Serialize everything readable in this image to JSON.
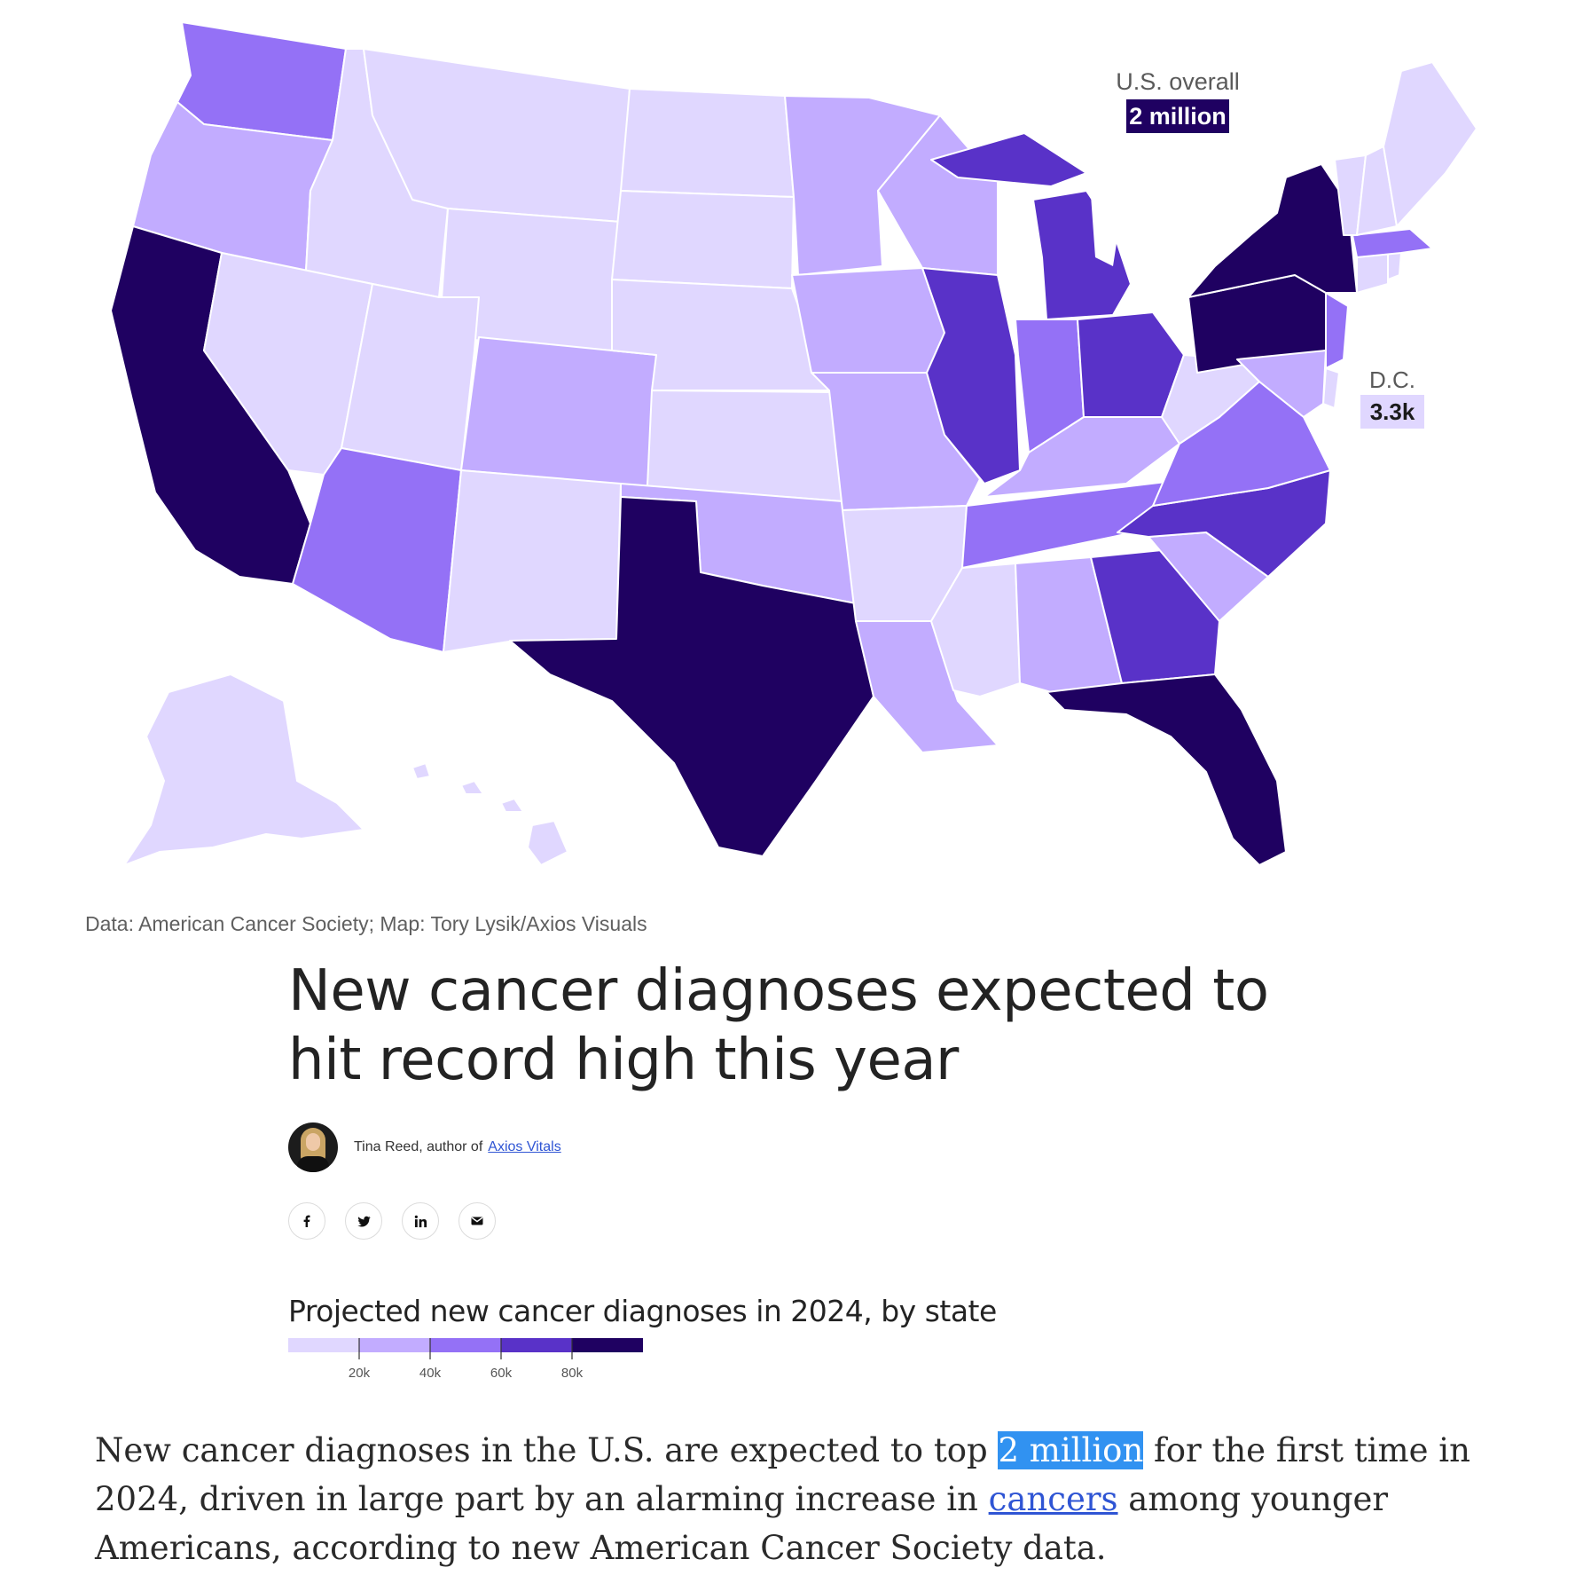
{
  "map": {
    "national_label": "U.S. overall",
    "national_value": "2 million",
    "dc_label": "D.C.",
    "dc_value": "3.3k"
  },
  "credit": "Data: American Cancer Society; Map: Tory Lysik/Axios Visuals",
  "article": {
    "headline": "New cancer diagnoses expected to hit record high this year",
    "author": "Tina Reed, author of",
    "newsletter_link": "Axios Vitals",
    "share_icons": [
      "facebook-icon",
      "twitter-icon",
      "linkedin-icon",
      "email-icon"
    ],
    "lede_part1": "New cancer diagnoses in the U.S. are expected to top ",
    "lede_highlight": "2 million",
    "lede_part2": " for the first time in 2024, driven in large part by an alarming increase in ",
    "lede_link": "cancers",
    "lede_part3": " among younger Americans, according to new American Cancer Society data."
  },
  "legend": {
    "title": "Projected new cancer diagnoses in 2024, by state",
    "ticks": [
      "20k",
      "40k",
      "60k",
      "80k"
    ],
    "colors": [
      "#e0d7ff",
      "#c2acff",
      "#9471f6",
      "#5932c8",
      "#1f0161"
    ]
  },
  "chart_data": {
    "type": "choropleth",
    "title": "Projected new cancer diagnoses in 2024, by state",
    "legend_bins": [
      "<20k",
      "20k–40k",
      "40k–60k",
      "60k–80k",
      ">80k"
    ],
    "states": [
      {
        "state": "WA",
        "bin": 2
      },
      {
        "state": "OR",
        "bin": 1
      },
      {
        "state": "CA",
        "bin": 4
      },
      {
        "state": "ID",
        "bin": 0
      },
      {
        "state": "NV",
        "bin": 0
      },
      {
        "state": "MT",
        "bin": 0
      },
      {
        "state": "WY",
        "bin": 0
      },
      {
        "state": "UT",
        "bin": 0
      },
      {
        "state": "AZ",
        "bin": 2
      },
      {
        "state": "CO",
        "bin": 1
      },
      {
        "state": "NM",
        "bin": 0
      },
      {
        "state": "ND",
        "bin": 0
      },
      {
        "state": "SD",
        "bin": 0
      },
      {
        "state": "NE",
        "bin": 0
      },
      {
        "state": "KS",
        "bin": 0
      },
      {
        "state": "OK",
        "bin": 1
      },
      {
        "state": "TX",
        "bin": 4
      },
      {
        "state": "MN",
        "bin": 1
      },
      {
        "state": "IA",
        "bin": 1
      },
      {
        "state": "MO",
        "bin": 1
      },
      {
        "state": "AR",
        "bin": 0
      },
      {
        "state": "LA",
        "bin": 1
      },
      {
        "state": "WI",
        "bin": 1
      },
      {
        "state": "IL",
        "bin": 3
      },
      {
        "state": "MI",
        "bin": 3
      },
      {
        "state": "IN",
        "bin": 2
      },
      {
        "state": "OH",
        "bin": 3
      },
      {
        "state": "KY",
        "bin": 1
      },
      {
        "state": "TN",
        "bin": 2
      },
      {
        "state": "MS",
        "bin": 0
      },
      {
        "state": "AL",
        "bin": 1
      },
      {
        "state": "GA",
        "bin": 3
      },
      {
        "state": "FL",
        "bin": 4
      },
      {
        "state": "SC",
        "bin": 1
      },
      {
        "state": "NC",
        "bin": 3
      },
      {
        "state": "VA",
        "bin": 2
      },
      {
        "state": "WV",
        "bin": 0
      },
      {
        "state": "PA",
        "bin": 4
      },
      {
        "state": "NY",
        "bin": 4
      },
      {
        "state": "NJ",
        "bin": 2
      },
      {
        "state": "DE",
        "bin": 0
      },
      {
        "state": "MD",
        "bin": 1
      },
      {
        "state": "CT",
        "bin": 0
      },
      {
        "state": "RI",
        "bin": 0
      },
      {
        "state": "MA",
        "bin": 2
      },
      {
        "state": "VT",
        "bin": 0
      },
      {
        "state": "NH",
        "bin": 0
      },
      {
        "state": "ME",
        "bin": 0
      },
      {
        "state": "AK",
        "bin": 0
      },
      {
        "state": "HI",
        "bin": 0
      },
      {
        "state": "DC",
        "bin": 0,
        "value": "3.3k"
      }
    ],
    "national_total": "2 million"
  }
}
